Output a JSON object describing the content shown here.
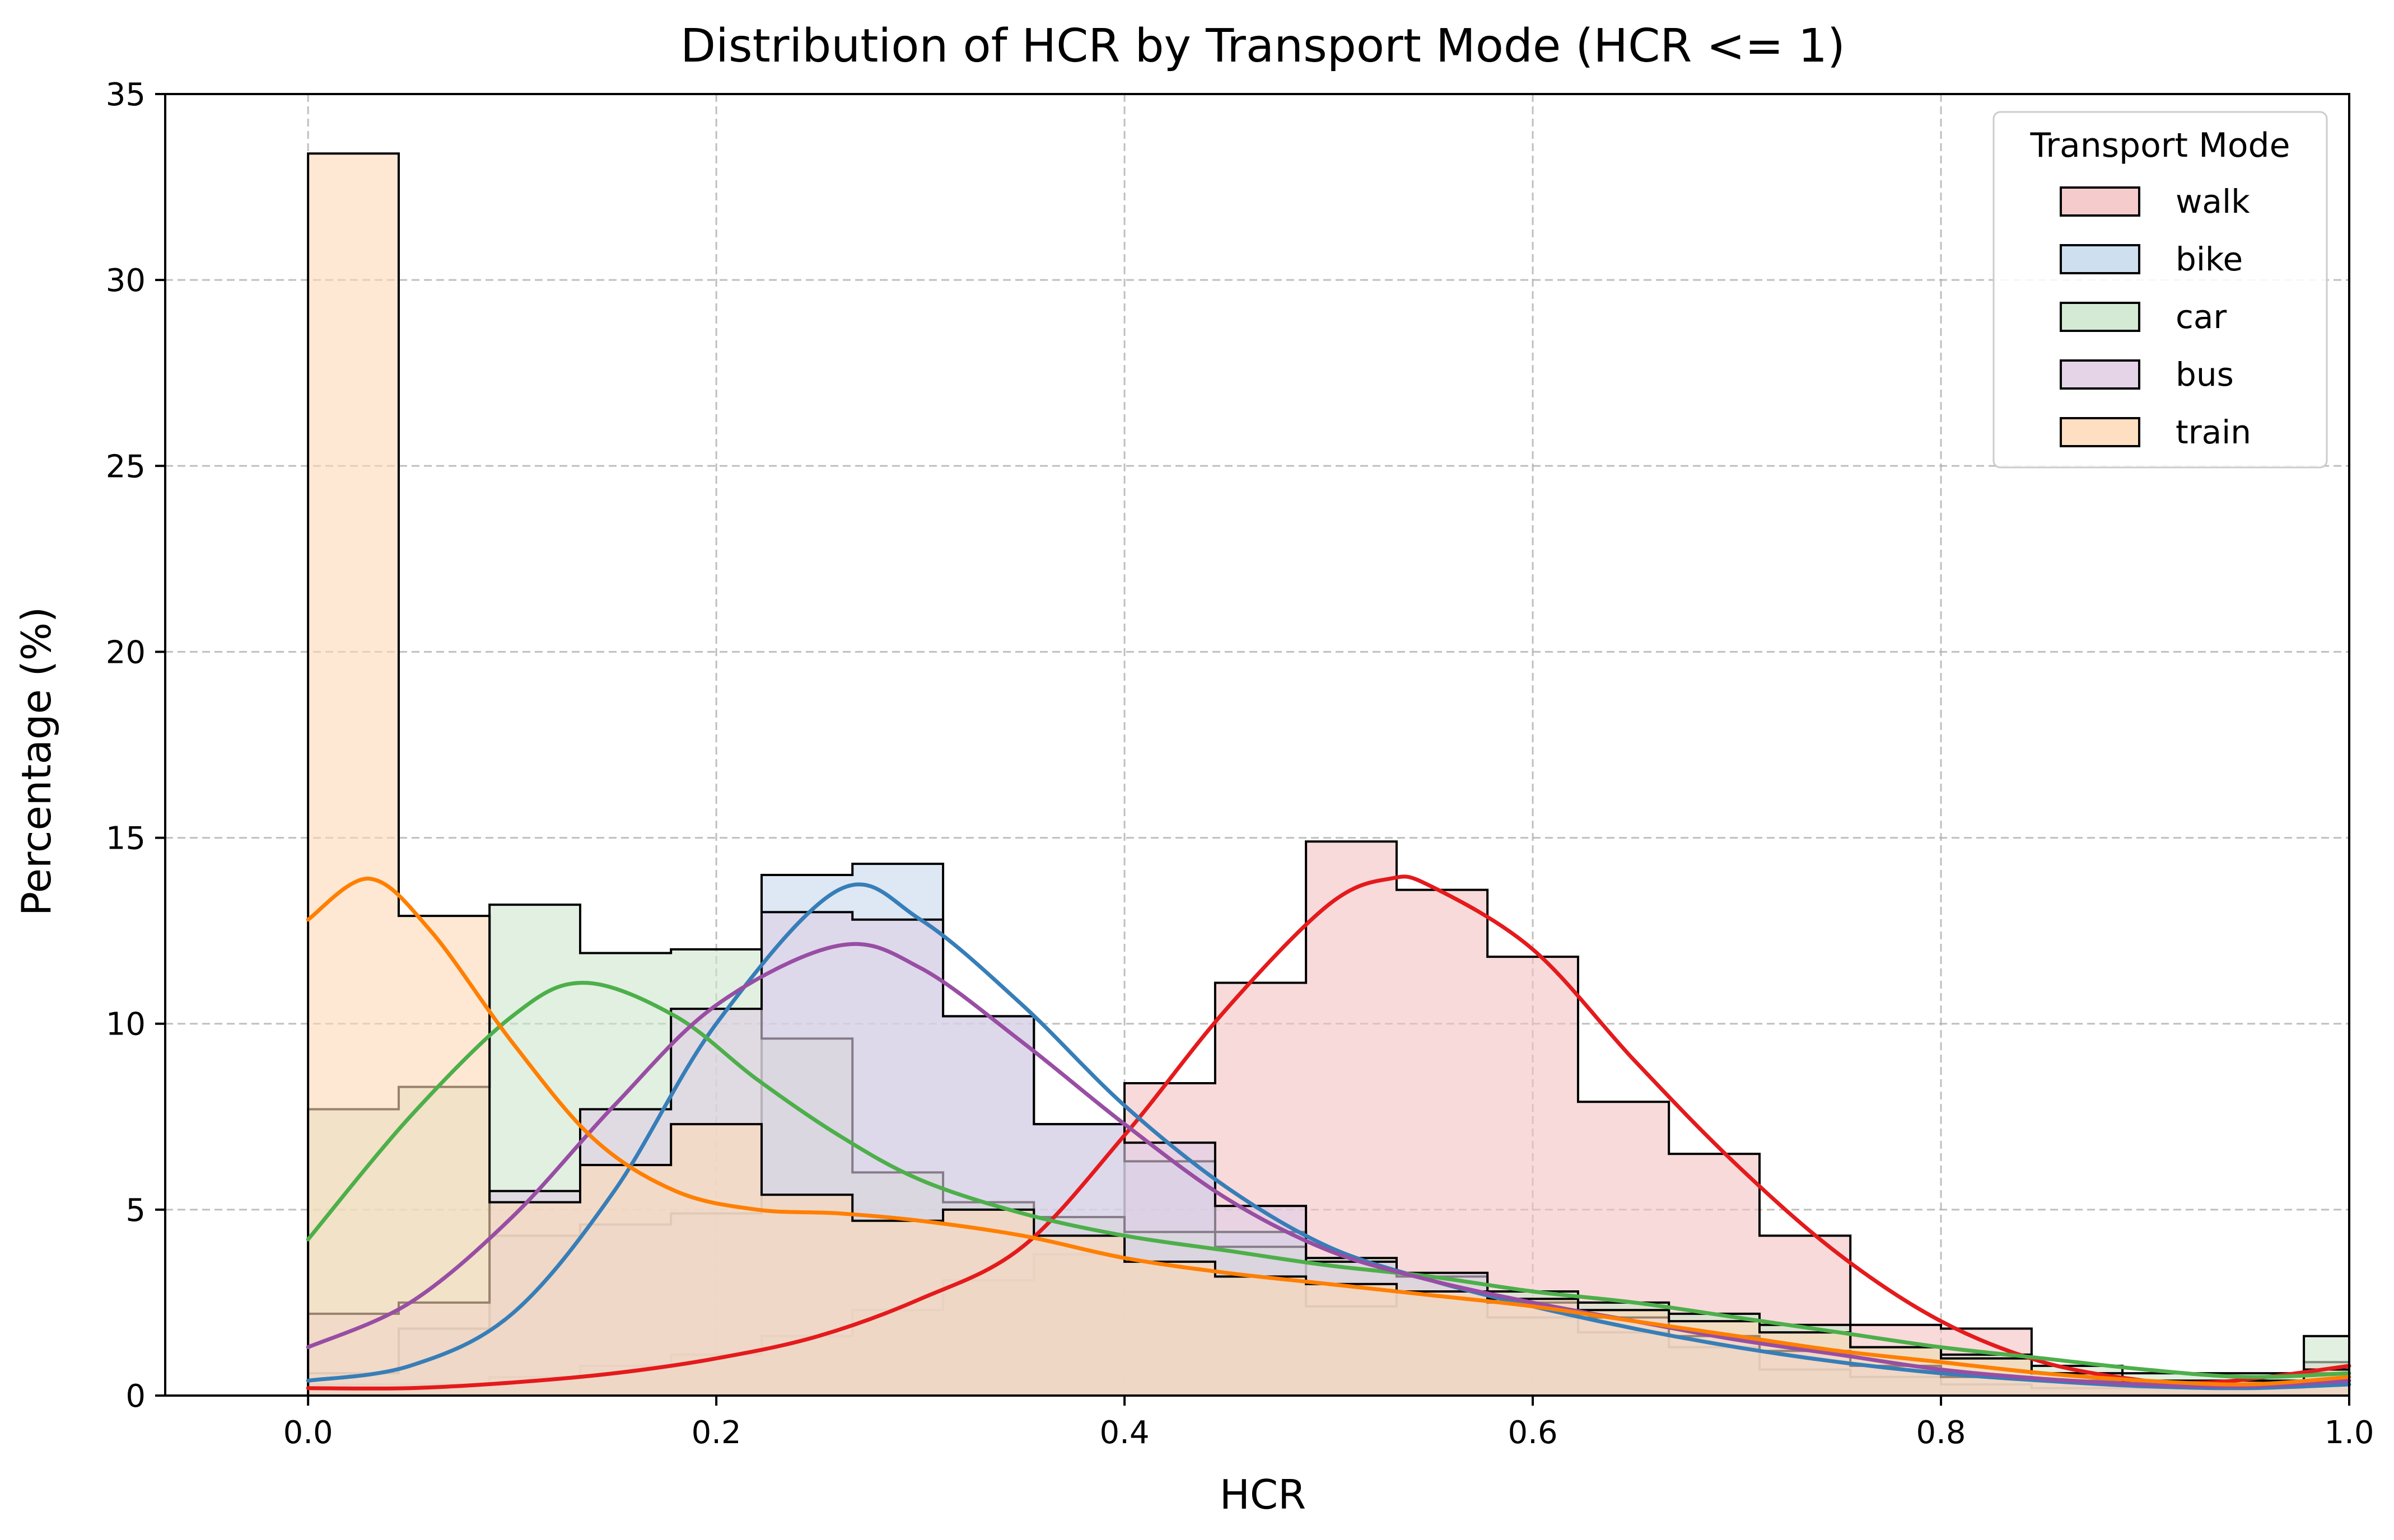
{
  "chart_data": {
    "type": "histogram",
    "title": "Distribution of HCR by Transport Mode (HCR <= 1)",
    "xlabel": "HCR",
    "ylabel": "Percentage (%)",
    "xlim": [
      -0.07,
      1.0
    ],
    "ylim": [
      0,
      35
    ],
    "xticks": [
      "0.0",
      "0.2",
      "0.4",
      "0.6",
      "0.8",
      "1.0"
    ],
    "yticks": [
      "0",
      "5",
      "10",
      "15",
      "20",
      "25",
      "30",
      "35"
    ],
    "grid": true,
    "legend": {
      "title": "Transport Mode",
      "position": "top-right"
    },
    "bin_edges": [
      0.0,
      0.0444,
      0.0889,
      0.1333,
      0.1778,
      0.2222,
      0.2667,
      0.3111,
      0.3556,
      0.4,
      0.4444,
      0.4889,
      0.5333,
      0.5778,
      0.6222,
      0.6667,
      0.7111,
      0.7556,
      0.8,
      0.8444,
      0.8889,
      0.9333,
      0.9778,
      1.0
    ],
    "series": [
      {
        "name": "walk",
        "color": "#e41a1c",
        "fill": "#f4c2c3",
        "values": [
          0.3,
          0.3,
          0.5,
          0.8,
          1.1,
          1.6,
          2.3,
          3.1,
          3.8,
          8.4,
          11.1,
          14.9,
          13.6,
          11.8,
          7.9,
          6.5,
          4.3,
          1.9,
          1.8,
          0.6,
          0.4,
          0.4,
          0.9
        ],
        "kde_x": [
          0.0,
          0.05,
          0.1,
          0.15,
          0.2,
          0.25,
          0.3,
          0.35,
          0.4,
          0.45,
          0.5,
          0.53,
          0.55,
          0.6,
          0.65,
          0.7,
          0.75,
          0.8,
          0.85,
          0.9,
          0.93,
          0.96,
          1.0
        ],
        "kde_y": [
          0.2,
          0.2,
          0.35,
          0.6,
          1.0,
          1.6,
          2.6,
          4.0,
          7.0,
          10.4,
          13.2,
          13.9,
          13.7,
          12.0,
          9.0,
          6.2,
          3.8,
          2.0,
          0.9,
          0.4,
          0.35,
          0.5,
          0.8
        ]
      },
      {
        "name": "bike",
        "color": "#377eb8",
        "fill": "#c6d9ec",
        "values": [
          0.6,
          1.8,
          4.3,
          4.6,
          4.9,
          14.0,
          14.3,
          10.2,
          7.3,
          6.3,
          4.4,
          2.4,
          2.8,
          2.1,
          1.7,
          1.3,
          0.7,
          0.5,
          0.3,
          0.2,
          0.2,
          0.2,
          0.3
        ],
        "kde_x": [
          0.0,
          0.05,
          0.1,
          0.15,
          0.2,
          0.26,
          0.3,
          0.35,
          0.4,
          0.45,
          0.5,
          0.55,
          0.6,
          0.65,
          0.7,
          0.75,
          0.8,
          0.85,
          0.9,
          0.95,
          1.0
        ],
        "kde_y": [
          0.4,
          0.8,
          2.2,
          5.5,
          10.0,
          13.6,
          12.8,
          10.5,
          7.8,
          5.6,
          4.0,
          3.1,
          2.4,
          1.8,
          1.3,
          0.9,
          0.6,
          0.4,
          0.25,
          0.2,
          0.3
        ]
      },
      {
        "name": "car",
        "color": "#4daf4a",
        "fill": "#cde6cc",
        "values": [
          7.7,
          8.3,
          13.2,
          11.9,
          12.0,
          9.6,
          6.0,
          5.2,
          4.8,
          4.4,
          4.0,
          3.7,
          3.2,
          2.8,
          2.5,
          2.2,
          1.9,
          1.3,
          1.1,
          0.8,
          0.6,
          0.6,
          1.6
        ],
        "kde_x": [
          0.0,
          0.05,
          0.1,
          0.135,
          0.18,
          0.22,
          0.26,
          0.3,
          0.35,
          0.4,
          0.45,
          0.5,
          0.55,
          0.6,
          0.65,
          0.7,
          0.75,
          0.8,
          0.85,
          0.9,
          0.95,
          1.0
        ],
        "kde_y": [
          4.2,
          7.5,
          10.2,
          11.1,
          10.2,
          8.5,
          7.0,
          5.8,
          4.9,
          4.3,
          3.9,
          3.5,
          3.2,
          2.8,
          2.5,
          2.1,
          1.7,
          1.3,
          1.0,
          0.7,
          0.5,
          0.6
        ]
      },
      {
        "name": "bus",
        "color": "#984ea3",
        "fill": "#e0cde4",
        "values": [
          2.2,
          2.5,
          5.5,
          7.7,
          10.4,
          13.0,
          12.8,
          10.2,
          7.3,
          6.8,
          5.1,
          3.6,
          3.3,
          2.5,
          2.1,
          1.6,
          1.2,
          0.8,
          0.5,
          0.4,
          0.3,
          0.3,
          0.6
        ],
        "kde_x": [
          0.0,
          0.05,
          0.1,
          0.15,
          0.2,
          0.26,
          0.3,
          0.35,
          0.4,
          0.45,
          0.5,
          0.55,
          0.6,
          0.65,
          0.7,
          0.75,
          0.8,
          0.85,
          0.9,
          0.95,
          1.0
        ],
        "kde_y": [
          1.3,
          2.5,
          4.8,
          7.8,
          10.5,
          12.1,
          11.5,
          9.5,
          7.3,
          5.3,
          3.9,
          3.1,
          2.5,
          2.0,
          1.5,
          1.1,
          0.7,
          0.45,
          0.3,
          0.25,
          0.4
        ]
      },
      {
        "name": "train",
        "color": "#ff7f00",
        "fill": "#fed9b6",
        "values": [
          33.4,
          12.9,
          5.2,
          6.2,
          7.3,
          5.4,
          4.7,
          5.0,
          4.3,
          3.6,
          3.2,
          3.0,
          2.8,
          2.6,
          2.3,
          2.0,
          1.7,
          1.3,
          1.0,
          0.6,
          0.4,
          0.4,
          0.7
        ],
        "kde_x": [
          0.0,
          0.03,
          0.06,
          0.1,
          0.14,
          0.18,
          0.22,
          0.26,
          0.3,
          0.35,
          0.4,
          0.45,
          0.5,
          0.55,
          0.6,
          0.65,
          0.7,
          0.75,
          0.8,
          0.85,
          0.9,
          0.95,
          1.0
        ],
        "kde_y": [
          12.8,
          13.9,
          12.5,
          9.5,
          6.9,
          5.5,
          5.0,
          4.9,
          4.7,
          4.3,
          3.7,
          3.3,
          3.0,
          2.7,
          2.4,
          2.0,
          1.6,
          1.2,
          0.9,
          0.6,
          0.4,
          0.3,
          0.5
        ]
      }
    ]
  }
}
